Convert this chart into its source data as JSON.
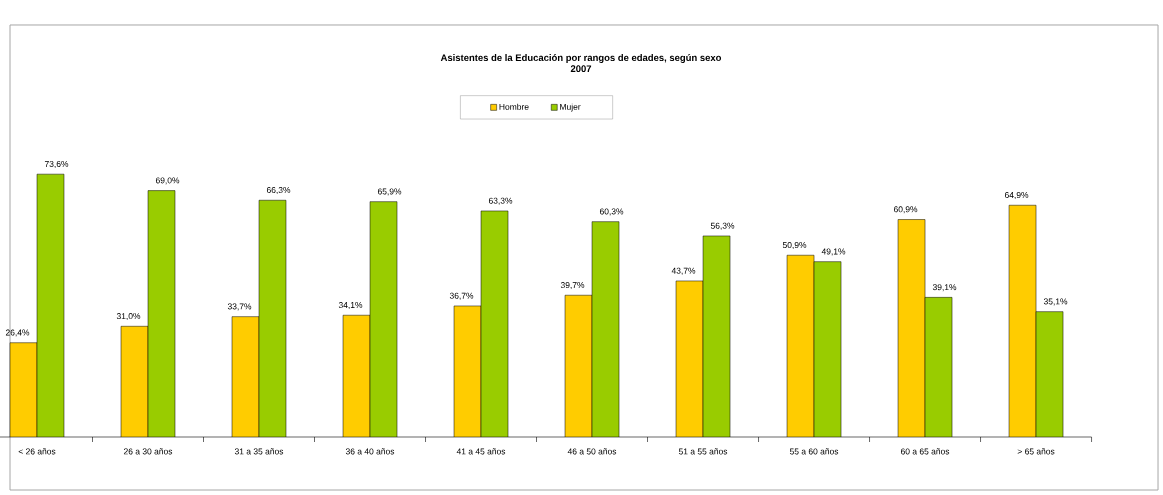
{
  "chart_data": {
    "type": "bar",
    "title": "Asistentes de la Educación por rangos de edades, según sexo",
    "subtitle": "2007",
    "categories": [
      "< 26 años",
      "26 a 30 años",
      "31 a 35 años",
      "36 a 40 años",
      "41 a 45 años",
      "46 a 50 años",
      "51 a 55 años",
      "55 a 60 años",
      "60 a 65 años",
      "> 65 años"
    ],
    "series": [
      {
        "name": "Hombre",
        "color": "#ffcc00",
        "values": [
          26.4,
          31.0,
          33.7,
          34.1,
          36.7,
          39.7,
          43.7,
          50.9,
          60.9,
          64.9
        ],
        "value_labels": [
          "26,4%",
          "31,0%",
          "33,7%",
          "34,1%",
          "36,7%",
          "39,7%",
          "43,7%",
          "50,9%",
          "60,9%",
          "64,9%"
        ]
      },
      {
        "name": "Mujer",
        "color": "#99cc00",
        "values": [
          73.6,
          69.0,
          66.3,
          65.9,
          63.3,
          60.3,
          56.3,
          49.1,
          39.1,
          35.1
        ],
        "value_labels": [
          "73,6%",
          "69,0%",
          "66,3%",
          "65,9%",
          "63,3%",
          "60,3%",
          "56,3%",
          "49,1%",
          "39,1%",
          "35,1%"
        ]
      }
    ],
    "legend": "top"
  }
}
